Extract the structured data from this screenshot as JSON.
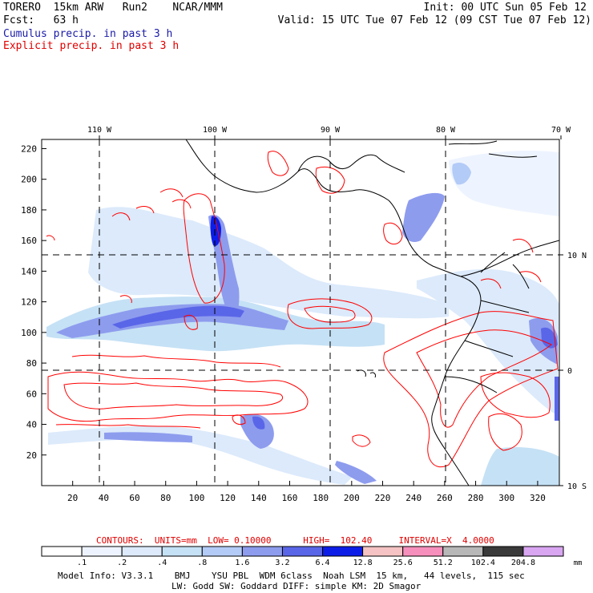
{
  "header": {
    "left_line1": "TORERO  15km ARW   Run2    NCAR/MMM",
    "left_line2": "Fcst:   63 h",
    "right_line1": "Init: 00 UTC Sun 05 Feb 12",
    "right_line2": "Valid: 15 UTC Tue 07 Feb 12 (09 CST Tue 07 Feb 12)",
    "cumulus_label": "Cumulus precip. in past 3 h",
    "explicit_label": "Explicit precip. in past 3 h"
  },
  "colors": {
    "cumulus_text": "#1a1aa8",
    "explicit_text": "#e00000",
    "contour": "#ff0000",
    "coast": "#000000"
  },
  "contour_info": {
    "text": "CONTOURS:  UNITS=mm  LOW= 0.10000      HIGH=  102.40     INTERVAL=X  4.0000"
  },
  "colorbar": {
    "unit": "mm",
    "levels": [
      ".1",
      ".2",
      ".4",
      ".8",
      "1.6",
      "3.2",
      "6.4",
      "12.8",
      "25.6",
      "51.2",
      "102.4",
      "204.8"
    ],
    "colors": [
      "#ffffff",
      "#eef4ff",
      "#dceafb",
      "#c5e1f5",
      "#b3cbf7",
      "#8e9cee",
      "#5a66e8",
      "#0d1de8",
      "#f5c3c3",
      "#f78fbc",
      "#b8b8b8",
      "#3a3a3a",
      "#d9a6f2"
    ]
  },
  "footer": {
    "line1": "Model Info: V3.3.1    BMJ    YSU PBL  WDM 6class  Noah LSM  15 km,   44 levels,  115 sec",
    "line2": "LW: Godd SW: Goddard DIFF: simple KM: 2D Smagor"
  },
  "chart_data": {
    "type": "heatmap",
    "title": "Cumulus precip. in past 3 h / Explicit precip. in past 3 h",
    "x_grid_ticks": [
      "20",
      "40",
      "60",
      "80",
      "100",
      "120",
      "140",
      "160",
      "180",
      "200",
      "220",
      "240",
      "260",
      "280",
      "300",
      "320"
    ],
    "x_grid_range": [
      0,
      334
    ],
    "y_grid_ticks": [
      "20",
      "40",
      "60",
      "80",
      "100",
      "120",
      "140",
      "160",
      "180",
      "200",
      "220"
    ],
    "y_grid_range": [
      0,
      226
    ],
    "lon_labels": [
      "110 W",
      "100 W",
      "90 W",
      "80 W",
      "70 W"
    ],
    "lon_values": [
      -110,
      -100,
      -90,
      -80,
      -70
    ],
    "lat_labels": [
      "10 N",
      "0",
      "10 S"
    ],
    "lat_values": [
      10,
      0,
      -10
    ],
    "dashed_grid": true,
    "units": "mm"
  }
}
